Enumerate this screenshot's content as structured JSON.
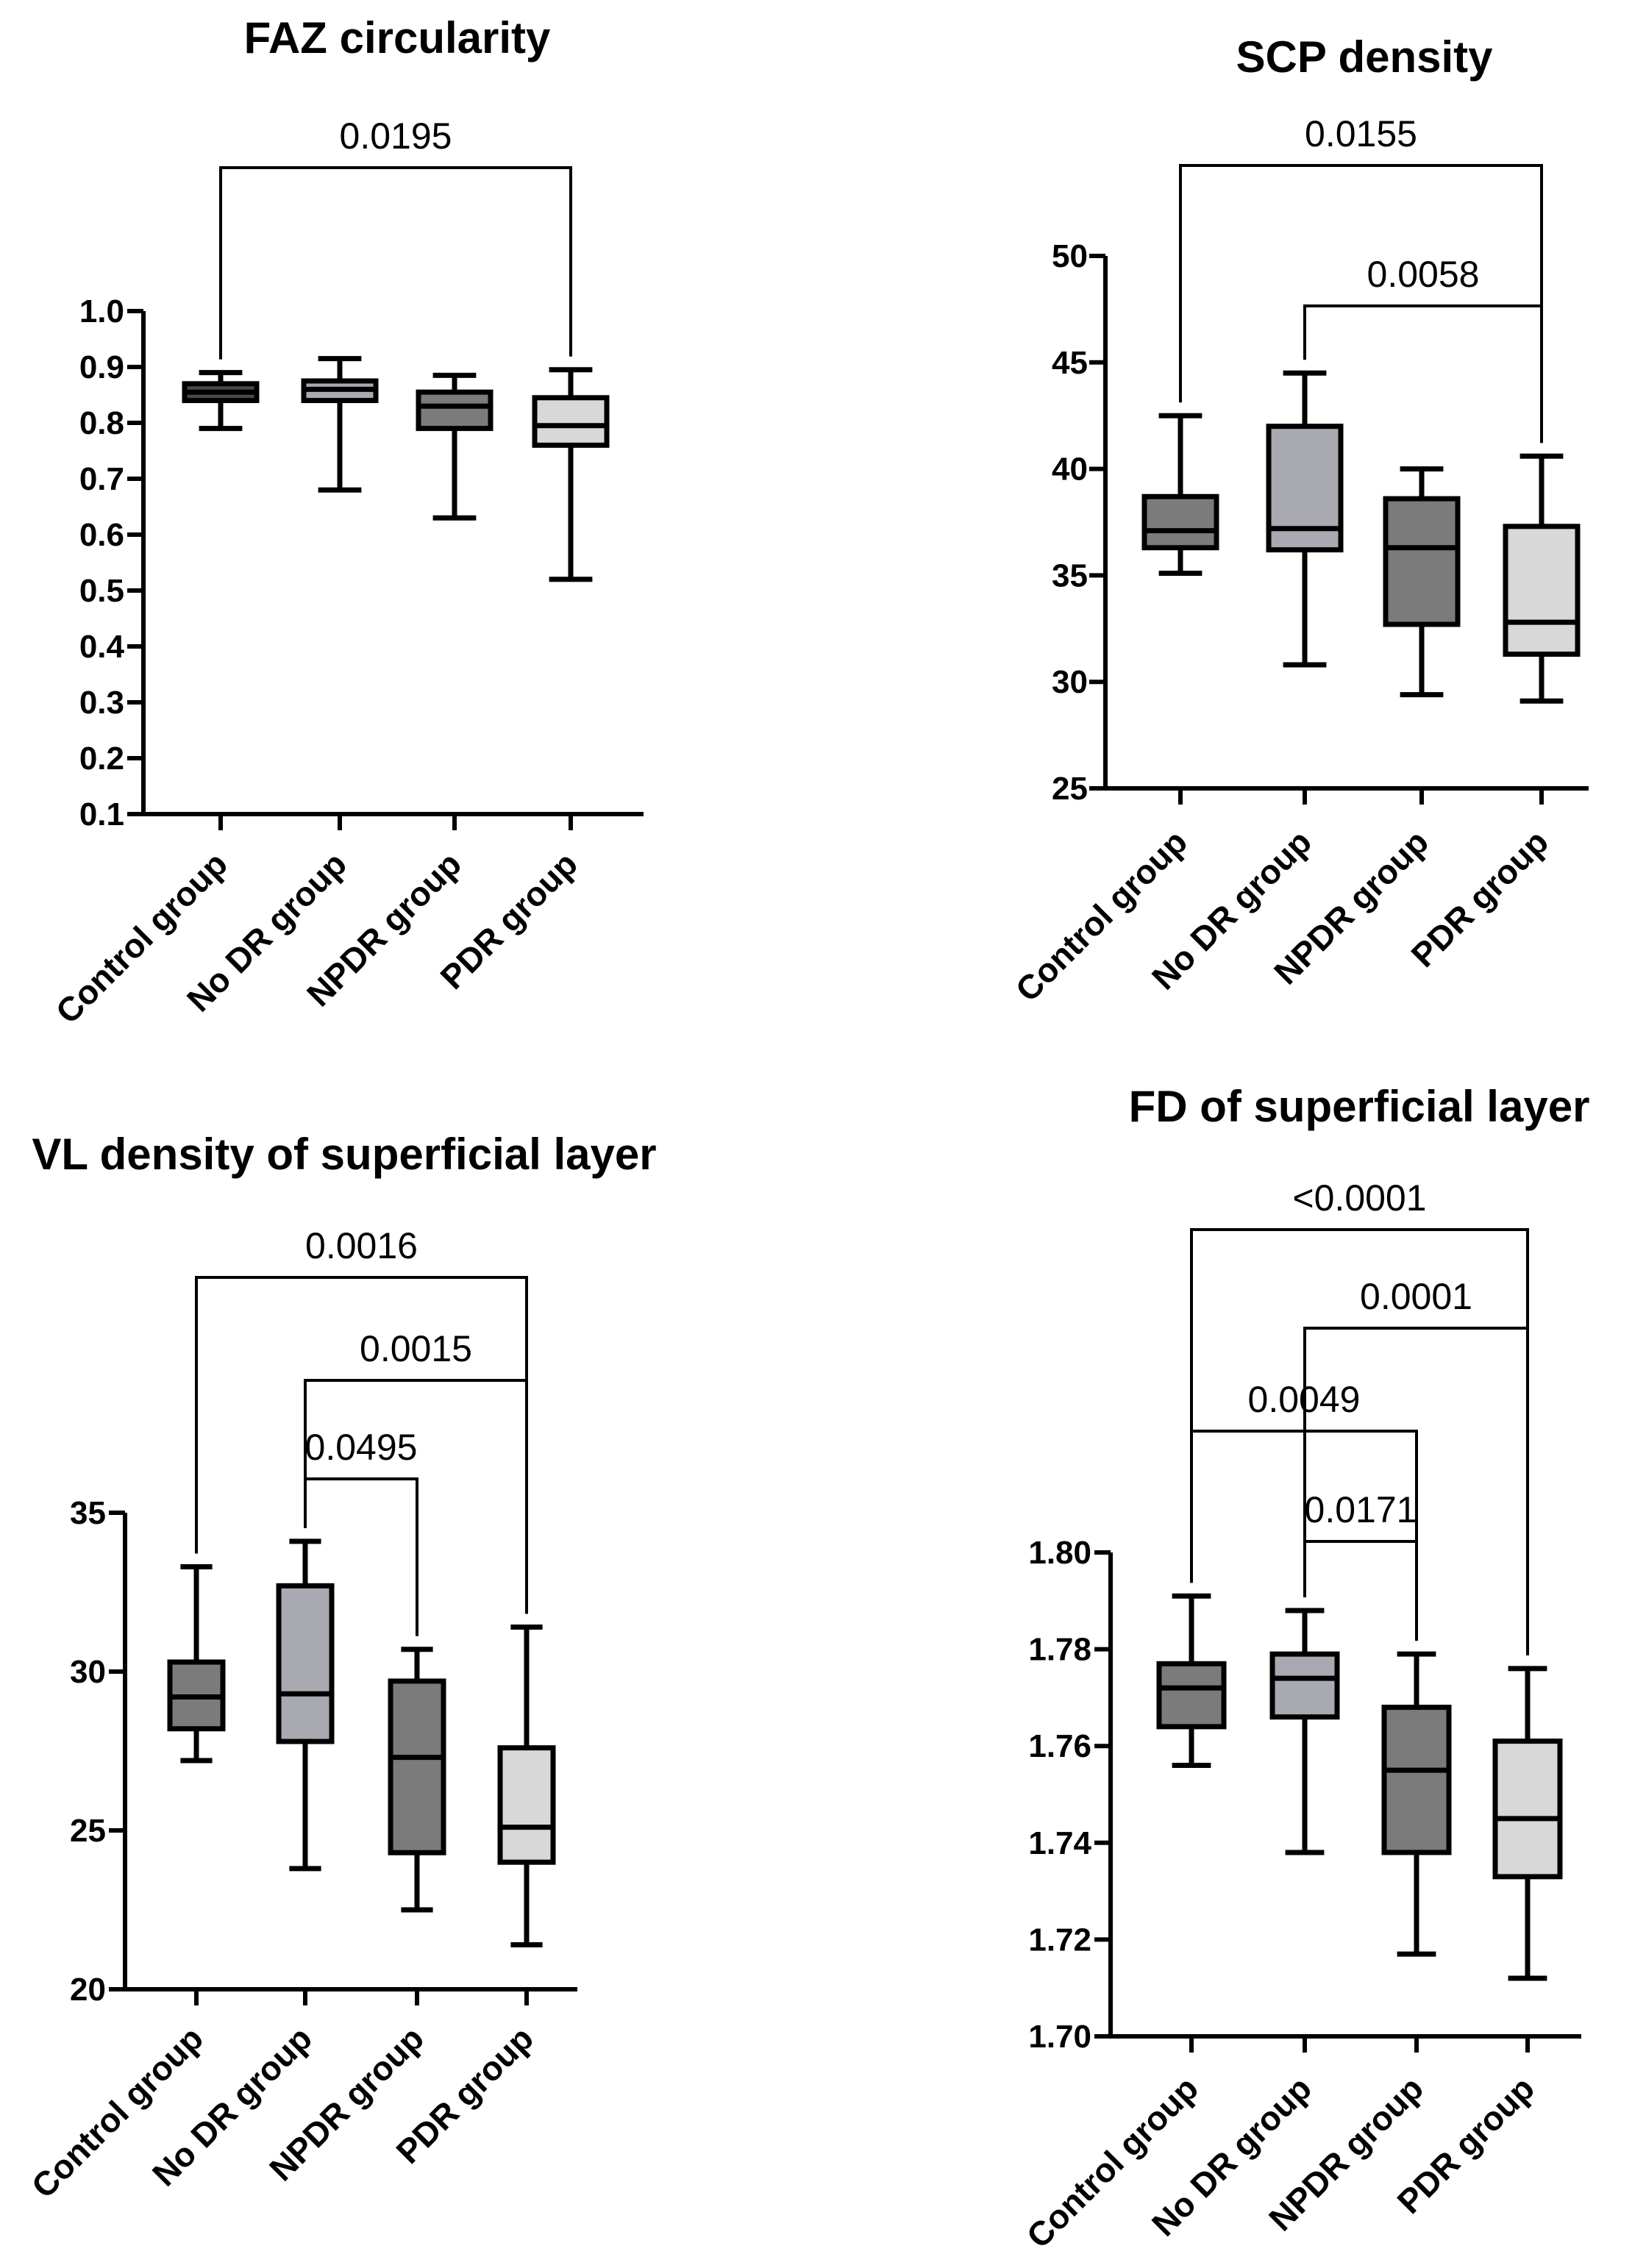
{
  "chart_data": [
    {
      "type": "box",
      "title": "FAZ circularity",
      "categories": [
        "Control group",
        "No DR group",
        "NPDR group",
        "PDR group"
      ],
      "ylim": [
        0.1,
        1.0
      ],
      "yticks": [
        "0.1",
        "0.2",
        "0.3",
        "0.4",
        "0.5",
        "0.6",
        "0.7",
        "0.8",
        "0.9",
        "1.0"
      ],
      "boxes": [
        {
          "min": 0.79,
          "q1": 0.84,
          "median": 0.855,
          "q3": 0.87,
          "max": 0.89,
          "fill": "#4a4a4a"
        },
        {
          "min": 0.68,
          "q1": 0.84,
          "median": 0.86,
          "q3": 0.875,
          "max": 0.915,
          "fill": "#a9a9b1"
        },
        {
          "min": 0.63,
          "q1": 0.79,
          "median": 0.83,
          "q3": 0.855,
          "max": 0.885,
          "fill": "#7b7b7b"
        },
        {
          "min": 0.52,
          "q1": 0.76,
          "median": 0.795,
          "q3": 0.845,
          "max": 0.895,
          "fill": "#d8d8d8"
        }
      ],
      "comparisons": [
        {
          "from": 0,
          "to": 3,
          "label": "0.0195"
        }
      ]
    },
    {
      "type": "box",
      "title": "SCP density",
      "categories": [
        "Control group",
        "No DR group",
        "NPDR group",
        "PDR group"
      ],
      "ylim": [
        25,
        50
      ],
      "yticks": [
        "25",
        "30",
        "35",
        "40",
        "45",
        "50"
      ],
      "boxes": [
        {
          "min": 35.1,
          "q1": 36.3,
          "median": 37.1,
          "q3": 38.7,
          "max": 42.5,
          "fill": "#7b7b7b"
        },
        {
          "min": 30.8,
          "q1": 36.2,
          "median": 37.2,
          "q3": 42.0,
          "max": 44.5,
          "fill": "#a9a9b1"
        },
        {
          "min": 29.4,
          "q1": 32.7,
          "median": 36.3,
          "q3": 38.6,
          "max": 40.0,
          "fill": "#7b7b7b"
        },
        {
          "min": 29.1,
          "q1": 31.3,
          "median": 32.8,
          "q3": 37.3,
          "max": 40.6,
          "fill": "#d8d8d8"
        }
      ],
      "comparisons": [
        {
          "from": 0,
          "to": 3,
          "label": "0.0155"
        },
        {
          "from": 1,
          "to": 3,
          "label": "0.0058"
        }
      ]
    },
    {
      "type": "box",
      "title": "VL density of superficial layer",
      "categories": [
        "Control group",
        "No DR group",
        "NPDR group",
        "PDR group"
      ],
      "ylim": [
        20,
        35
      ],
      "yticks": [
        "20",
        "25",
        "30",
        "35"
      ],
      "boxes": [
        {
          "min": 27.2,
          "q1": 28.2,
          "median": 29.2,
          "q3": 30.3,
          "max": 33.3,
          "fill": "#7b7b7b"
        },
        {
          "min": 23.8,
          "q1": 27.8,
          "median": 29.3,
          "q3": 32.7,
          "max": 34.1,
          "fill": "#a9a9b1"
        },
        {
          "min": 22.5,
          "q1": 24.3,
          "median": 27.3,
          "q3": 29.7,
          "max": 30.7,
          "fill": "#7b7b7b"
        },
        {
          "min": 21.4,
          "q1": 24.0,
          "median": 25.1,
          "q3": 27.6,
          "max": 31.4,
          "fill": "#d8d8d8"
        }
      ],
      "comparisons": [
        {
          "from": 0,
          "to": 3,
          "label": "0.0016"
        },
        {
          "from": 1,
          "to": 3,
          "label": "0.0015"
        },
        {
          "from": 1,
          "to": 2,
          "label": "0.0495"
        }
      ]
    },
    {
      "type": "box",
      "title": "FD of superficial layer",
      "categories": [
        "Control group",
        "No DR group",
        "NPDR group",
        "PDR group"
      ],
      "ylim": [
        1.7,
        1.8
      ],
      "yticks": [
        "1.70",
        "1.72",
        "1.74",
        "1.76",
        "1.78",
        "1.80"
      ],
      "boxes": [
        {
          "min": 1.756,
          "q1": 1.764,
          "median": 1.772,
          "q3": 1.777,
          "max": 1.791,
          "fill": "#7b7b7b"
        },
        {
          "min": 1.738,
          "q1": 1.766,
          "median": 1.774,
          "q3": 1.779,
          "max": 1.788,
          "fill": "#a9a9b1"
        },
        {
          "min": 1.717,
          "q1": 1.738,
          "median": 1.755,
          "q3": 1.768,
          "max": 1.779,
          "fill": "#7b7b7b"
        },
        {
          "min": 1.712,
          "q1": 1.733,
          "median": 1.745,
          "q3": 1.761,
          "max": 1.776,
          "fill": "#d8d8d8"
        }
      ],
      "comparisons": [
        {
          "from": 0,
          "to": 3,
          "label": "<0.0001"
        },
        {
          "from": 1,
          "to": 3,
          "label": "0.0001"
        },
        {
          "from": 0,
          "to": 2,
          "label": "0.0049"
        },
        {
          "from": 1,
          "to": 2,
          "label": "0.0171"
        }
      ]
    }
  ]
}
